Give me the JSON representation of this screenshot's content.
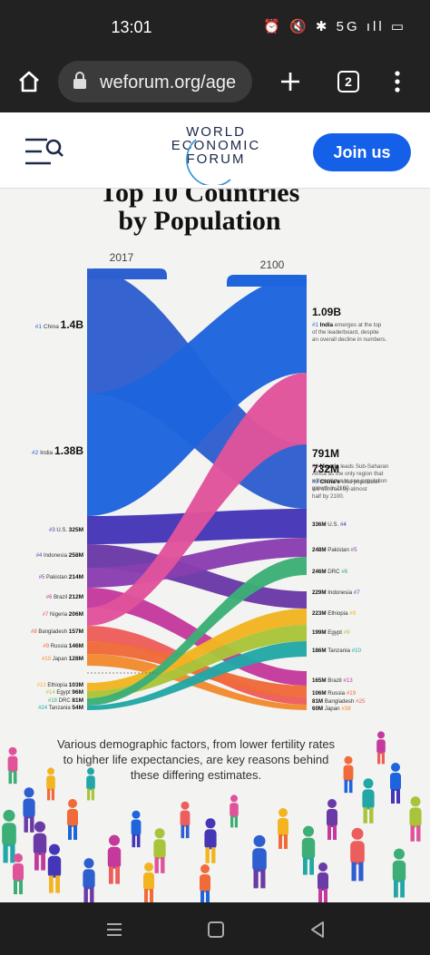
{
  "status_bar": {
    "time": "13:01",
    "icons": "⏰ 🔇 ✱ 5G ıll ▭"
  },
  "browser": {
    "url": "weforum.org/age",
    "tab_count": "2"
  },
  "site_header": {
    "logo_lines": [
      "WORLD",
      "ECONOMIC",
      "FORUM"
    ],
    "join_label": "Join us"
  },
  "infographic": {
    "title_line1": "Top 10 Countries",
    "title_line2": "by Population",
    "year_left": "2017",
    "year_right": "2100",
    "colors": {
      "china": "#2e5fd0",
      "india": "#1e64dd",
      "us": "#4536b8",
      "indonesia": "#6a3aa6",
      "pakistan": "#8a3eb0",
      "brazil": "#c43a9c",
      "nigeria": "#e0539b",
      "bangladesh": "#ed5d5b",
      "russia": "#f06a3a",
      "japan": "#f28a2e",
      "ethiopia": "#f2b521",
      "egypt": "#a9c43a",
      "drc": "#3cae76",
      "tanzania": "#23a7a6"
    },
    "chart_data": {
      "type": "sankey",
      "source_year": "2017",
      "target_year": "2100",
      "countries": [
        {
          "name": "China",
          "rank_2017": 1,
          "pop_2017": "1.4B",
          "rank_2100": 3,
          "pop_2100": "732M"
        },
        {
          "name": "India",
          "rank_2017": 2,
          "pop_2017": "1.38B",
          "rank_2100": 1,
          "pop_2100": "1.09B"
        },
        {
          "name": "U.S.",
          "rank_2017": 3,
          "pop_2017": "325M",
          "rank_2100": 4,
          "pop_2100": "336M"
        },
        {
          "name": "Indonesia",
          "rank_2017": 4,
          "pop_2017": "258M",
          "rank_2100": 7,
          "pop_2100": "229M"
        },
        {
          "name": "Pakistan",
          "rank_2017": 5,
          "pop_2017": "214M",
          "rank_2100": 5,
          "pop_2100": "248M"
        },
        {
          "name": "Brazil",
          "rank_2017": 6,
          "pop_2017": "212M",
          "rank_2100": 13,
          "pop_2100": "165M"
        },
        {
          "name": "Nigeria",
          "rank_2017": 7,
          "pop_2017": "206M",
          "rank_2100": 2,
          "pop_2100": "791M"
        },
        {
          "name": "Bangladesh",
          "rank_2017": 8,
          "pop_2017": "157M",
          "rank_2100": 25,
          "pop_2100": "81M"
        },
        {
          "name": "Russia",
          "rank_2017": 9,
          "pop_2017": "146M",
          "rank_2100": 19,
          "pop_2100": "106M"
        },
        {
          "name": "Japan",
          "rank_2017": 10,
          "pop_2017": "128M",
          "rank_2100": 38,
          "pop_2100": "60M"
        },
        {
          "name": "Ethiopia",
          "rank_2017": 13,
          "pop_2017": "103M",
          "rank_2100": 8,
          "pop_2100": "223M"
        },
        {
          "name": "Egypt",
          "rank_2017": 14,
          "pop_2017": "96M",
          "rank_2100": 9,
          "pop_2100": "199M"
        },
        {
          "name": "DRC",
          "rank_2017": 18,
          "pop_2017": "81M",
          "rank_2100": 6,
          "pop_2100": "246M"
        },
        {
          "name": "Tanzania",
          "rank_2017": 24,
          "pop_2017": "54M",
          "rank_2100": 10,
          "pop_2100": "186M"
        }
      ]
    },
    "left_labels": [
      {
        "rank": "#1",
        "name": "China",
        "value": "1.4B"
      },
      {
        "rank": "#2",
        "name": "India",
        "value": "1.38B"
      },
      {
        "rank": "#3",
        "name": "U.S.",
        "value": "325M"
      },
      {
        "rank": "#4",
        "name": "Indonesia",
        "value": "258M"
      },
      {
        "rank": "#5",
        "name": "Pakistan",
        "value": "214M"
      },
      {
        "rank": "#6",
        "name": "Brazil",
        "value": "212M"
      },
      {
        "rank": "#7",
        "name": "Nigeria",
        "value": "206M"
      },
      {
        "rank": "#8",
        "name": "Bangladesh",
        "value": "157M"
      },
      {
        "rank": "#9",
        "name": "Russia",
        "value": "146M"
      },
      {
        "rank": "#10",
        "name": "Japan",
        "value": "128M"
      },
      {
        "rank": "#13",
        "name": "Ethiopia",
        "value": "103M"
      },
      {
        "rank": "#14",
        "name": "Egypt",
        "value": "96M"
      },
      {
        "rank": "#18",
        "name": "DRC",
        "value": "81M"
      },
      {
        "rank": "#24",
        "name": "Tanzania",
        "value": "54M"
      }
    ],
    "right_big": [
      {
        "value": "1.09B",
        "rank": "#1",
        "name": "India",
        "desc": [
          "emerges at the top",
          "of the leaderboard, despite",
          "an overall decline in numbers."
        ]
      },
      {
        "value": "791M",
        "rank": "#2",
        "name": "Nigeria",
        "desc": [
          "leads Sub-Saharan",
          "Africa as the only region that",
          "will continue to see population",
          "growth in 2100."
        ]
      },
      {
        "value": "732M",
        "rank": "#3",
        "name": "China's",
        "desc": [
          "total population",
          "will contract by almost",
          "half by 2100."
        ]
      }
    ],
    "right_labels": [
      {
        "value": "336M",
        "name": "U.S.",
        "rank": "#4"
      },
      {
        "value": "248M",
        "name": "Pakistan",
        "rank": "#5"
      },
      {
        "value": "246M",
        "name": "DRC",
        "rank": "#6"
      },
      {
        "value": "229M",
        "name": "Indonesia",
        "rank": "#7"
      },
      {
        "value": "223M",
        "name": "Ethiopia",
        "rank": "#8"
      },
      {
        "value": "199M",
        "name": "Egypt",
        "rank": "#9"
      },
      {
        "value": "186M",
        "name": "Tanzania",
        "rank": "#10"
      },
      {
        "value": "165M",
        "name": "Brazil",
        "rank": "#13"
      },
      {
        "value": "106M",
        "name": "Russia",
        "rank": "#19"
      },
      {
        "value": "81M",
        "name": "Bangladesh",
        "rank": "#25"
      },
      {
        "value": "60M",
        "name": "Japan",
        "rank": "#38"
      }
    ],
    "caption_lines": [
      "Various demographic factors, from lower fertility rates",
      "to higher life expectancies, are key reasons behind",
      "these differing estimates."
    ]
  }
}
